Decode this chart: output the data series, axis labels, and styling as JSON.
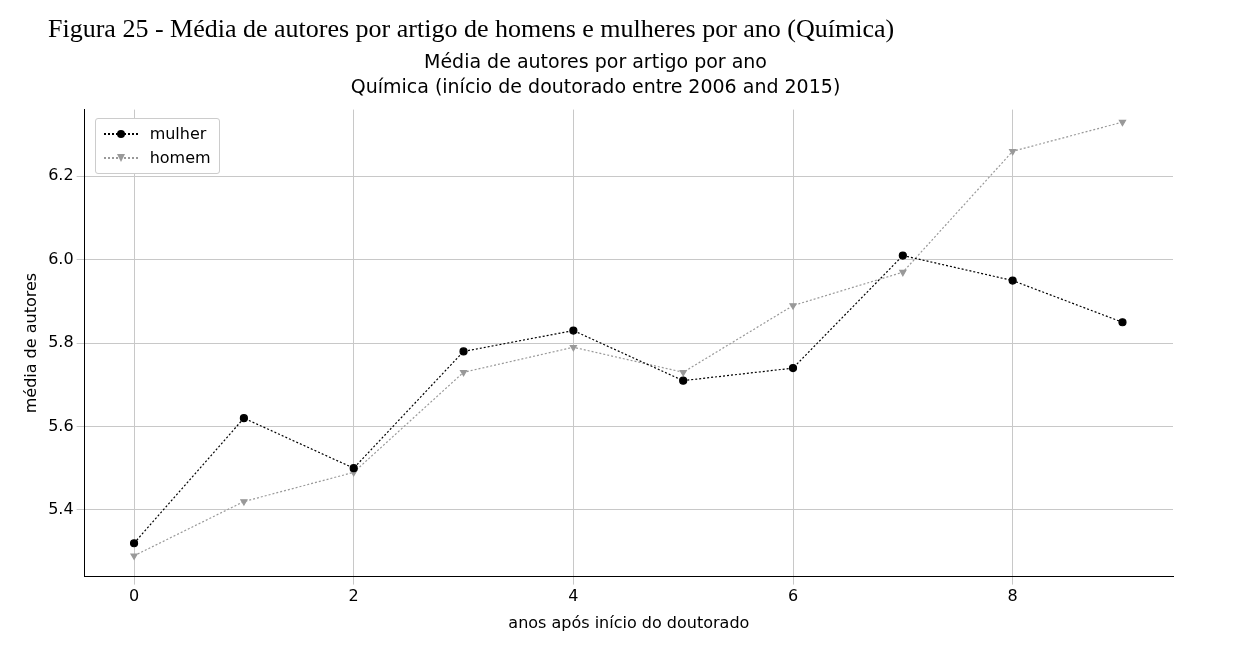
{
  "chart_data": {
    "type": "line",
    "title": "Média de autores por artigo por ano",
    "subtitle": "Química (início de doutorado entre 2006 and 2015)",
    "xlabel": "anos após início do doutorado",
    "ylabel": "média de autores",
    "annotations": [
      "Figura 25 - Média de autores por artigo de homens e mulheres por ano (Química)"
    ],
    "x": [
      0,
      1,
      2,
      3,
      4,
      5,
      6,
      7,
      8,
      9
    ],
    "series": [
      {
        "name": "mulher",
        "color": "#000000",
        "marker": "circle",
        "values": [
          5.32,
          5.62,
          5.5,
          5.78,
          5.83,
          5.71,
          5.74,
          6.01,
          5.95,
          5.85
        ]
      },
      {
        "name": "homem",
        "color": "#999999",
        "marker": "triangle",
        "values": [
          5.29,
          5.42,
          5.49,
          5.73,
          5.79,
          5.73,
          5.89,
          5.97,
          6.26,
          6.33
        ]
      }
    ],
    "xlim": [
      -0.45,
      9.46
    ],
    "xticks": [
      0,
      2,
      4,
      6,
      8
    ],
    "ylim": [
      5.24,
      6.36
    ],
    "yticks": [
      {
        "value": 5.4,
        "label": "5.4"
      },
      {
        "value": 5.6,
        "label": "5.6"
      },
      {
        "value": 5.8,
        "label": "5.8"
      },
      {
        "value": 6.0,
        "label": "6.0"
      },
      {
        "value": 6.2,
        "label": "6.2"
      }
    ],
    "grid": true,
    "legend": "top left",
    "line_style": "dotted"
  }
}
